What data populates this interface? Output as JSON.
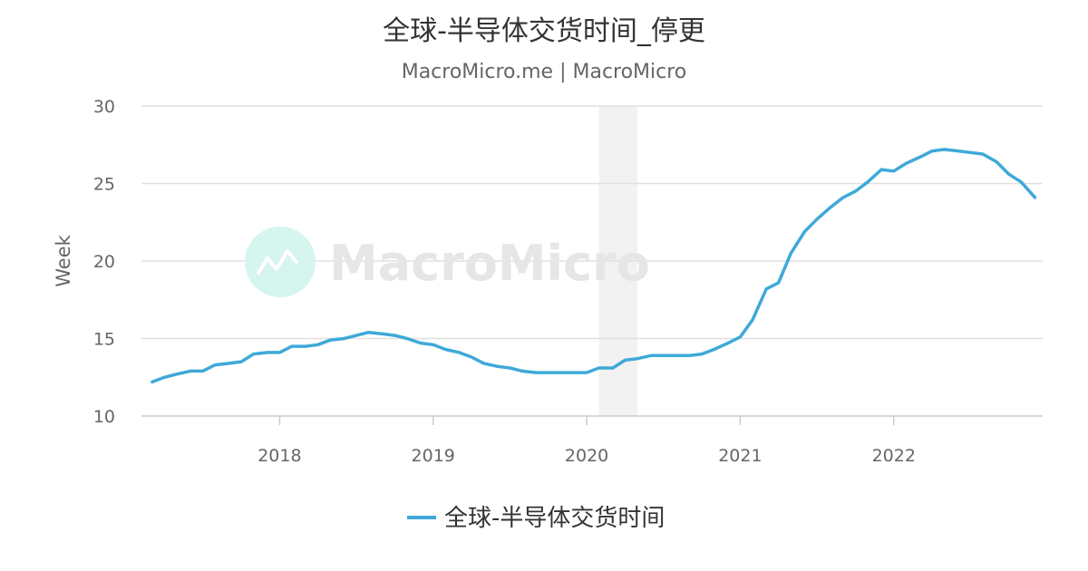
{
  "chart_data": {
    "type": "line",
    "title": "全球-半导体交货时间_停更",
    "subtitle": "MacroMicro.me | MacroMicro",
    "ylabel": "Week",
    "xlabel": "",
    "ylim": [
      10,
      30
    ],
    "yticks": [
      10,
      15,
      20,
      25,
      30
    ],
    "xlim": [
      2017.1,
      2022.97
    ],
    "xticks": [
      2018,
      2019,
      2020,
      2021,
      2022
    ],
    "grid": true,
    "legend_placement": "bottom",
    "watermark": "MacroMicro",
    "recession_band": [
      2020.08,
      2020.33
    ],
    "colors": {
      "series": "#3ea9d8",
      "band": "#f2f2f2",
      "grid": "#e0e0e0",
      "watermark_circle": "#d5f5ee"
    },
    "series": [
      {
        "name": "全球-半导体交货时间",
        "x": [
          2017.17,
          2017.25,
          2017.33,
          2017.42,
          2017.5,
          2017.58,
          2017.67,
          2017.75,
          2017.83,
          2017.92,
          2018.0,
          2018.08,
          2018.17,
          2018.25,
          2018.33,
          2018.42,
          2018.5,
          2018.58,
          2018.67,
          2018.75,
          2018.83,
          2018.92,
          2019.0,
          2019.08,
          2019.17,
          2019.25,
          2019.33,
          2019.42,
          2019.5,
          2019.58,
          2019.67,
          2019.75,
          2019.83,
          2019.92,
          2020.0,
          2020.08,
          2020.17,
          2020.25,
          2020.33,
          2020.42,
          2020.5,
          2020.58,
          2020.67,
          2020.75,
          2020.83,
          2020.92,
          2021.0,
          2021.08,
          2021.17,
          2021.25,
          2021.33,
          2021.42,
          2021.5,
          2021.58,
          2021.67,
          2021.75,
          2021.83,
          2021.92,
          2022.0,
          2022.08,
          2022.17,
          2022.25,
          2022.33,
          2022.42,
          2022.5,
          2022.58,
          2022.67,
          2022.75,
          2022.83,
          2022.92
        ],
        "values": [
          12.2,
          12.5,
          12.7,
          12.9,
          12.9,
          13.3,
          13.4,
          13.5,
          14.0,
          14.1,
          14.1,
          14.5,
          14.5,
          14.6,
          14.9,
          15.0,
          15.2,
          15.4,
          15.3,
          15.2,
          15.0,
          14.7,
          14.6,
          14.3,
          14.1,
          13.8,
          13.4,
          13.2,
          13.1,
          12.9,
          12.8,
          12.8,
          12.8,
          12.8,
          12.8,
          13.1,
          13.1,
          13.6,
          13.7,
          13.9,
          13.9,
          13.9,
          13.9,
          14.0,
          14.3,
          14.7,
          15.1,
          16.2,
          18.2,
          18.6,
          20.5,
          21.9,
          22.7,
          23.4,
          24.1,
          24.5,
          25.1,
          25.9,
          25.8,
          26.3,
          26.7,
          27.1,
          27.2,
          27.1,
          27.0,
          26.9,
          26.4,
          25.6,
          25.1,
          24.1
        ]
      }
    ]
  }
}
